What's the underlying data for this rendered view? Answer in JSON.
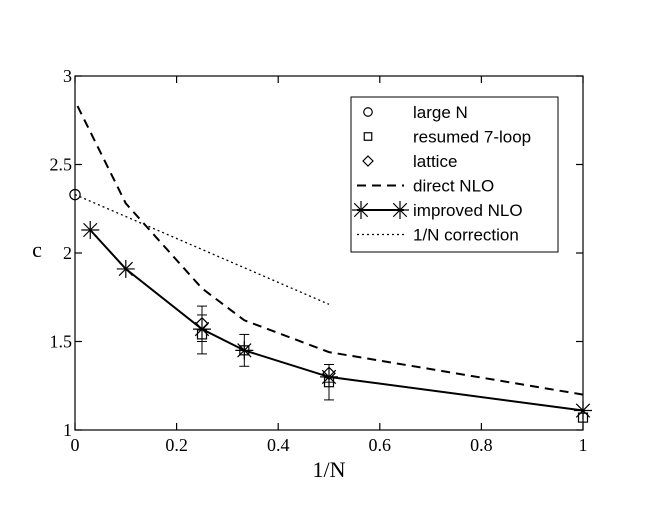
{
  "chart_data": {
    "type": "line",
    "xlabel": "1/N",
    "ylabel": "c",
    "xlim": [
      0,
      1
    ],
    "ylim": [
      1,
      3
    ],
    "xticks": [
      0,
      0.2,
      0.4,
      0.6,
      0.8,
      1
    ],
    "xtick_labels": [
      "0",
      "0.2",
      "0.4",
      "0.6",
      "0.8",
      "1"
    ],
    "yticks": [
      1,
      1.5,
      2,
      2.5,
      3
    ],
    "ytick_labels": [
      "1",
      "1.5",
      "2",
      "2.5",
      "3"
    ],
    "legend_position": "top-right",
    "series": [
      {
        "name": "large N",
        "kind": "marker",
        "marker": "circle",
        "points": [
          {
            "x": 0,
            "y": 2.33
          }
        ]
      },
      {
        "name": "resumed 7-loop",
        "kind": "marker",
        "marker": "square",
        "points": [
          {
            "x": 0.25,
            "y": 1.54,
            "err": 0.11
          },
          {
            "x": 0.3333,
            "y": 1.45,
            "err": 0.09
          },
          {
            "x": 0.5,
            "y": 1.27,
            "err": 0.1
          },
          {
            "x": 1,
            "y": 1.07
          }
        ]
      },
      {
        "name": "lattice",
        "kind": "marker",
        "marker": "diamond",
        "points": [
          {
            "x": 0.25,
            "y": 1.6,
            "err": 0.1
          },
          {
            "x": 0.5,
            "y": 1.32,
            "err": 0.05
          }
        ]
      },
      {
        "name": "direct NLO",
        "kind": "line",
        "style": "dashed",
        "points": [
          {
            "x": 0.005,
            "y": 2.83
          },
          {
            "x": 0.1,
            "y": 2.28
          },
          {
            "x": 0.25,
            "y": 1.8
          },
          {
            "x": 0.3333,
            "y": 1.62
          },
          {
            "x": 0.5,
            "y": 1.44
          },
          {
            "x": 1,
            "y": 1.2
          }
        ]
      },
      {
        "name": "improved NLO",
        "kind": "line-marker",
        "style": "solid",
        "marker": "star",
        "points": [
          {
            "x": 0.03,
            "y": 2.13
          },
          {
            "x": 0.1,
            "y": 1.91
          },
          {
            "x": 0.25,
            "y": 1.57
          },
          {
            "x": 0.3333,
            "y": 1.45
          },
          {
            "x": 0.5,
            "y": 1.3
          },
          {
            "x": 1,
            "y": 1.11
          }
        ]
      },
      {
        "name": "1/N correction",
        "kind": "line",
        "style": "dotted",
        "points": [
          {
            "x": 0,
            "y": 2.33
          },
          {
            "x": 0.5,
            "y": 1.71
          }
        ]
      }
    ]
  }
}
